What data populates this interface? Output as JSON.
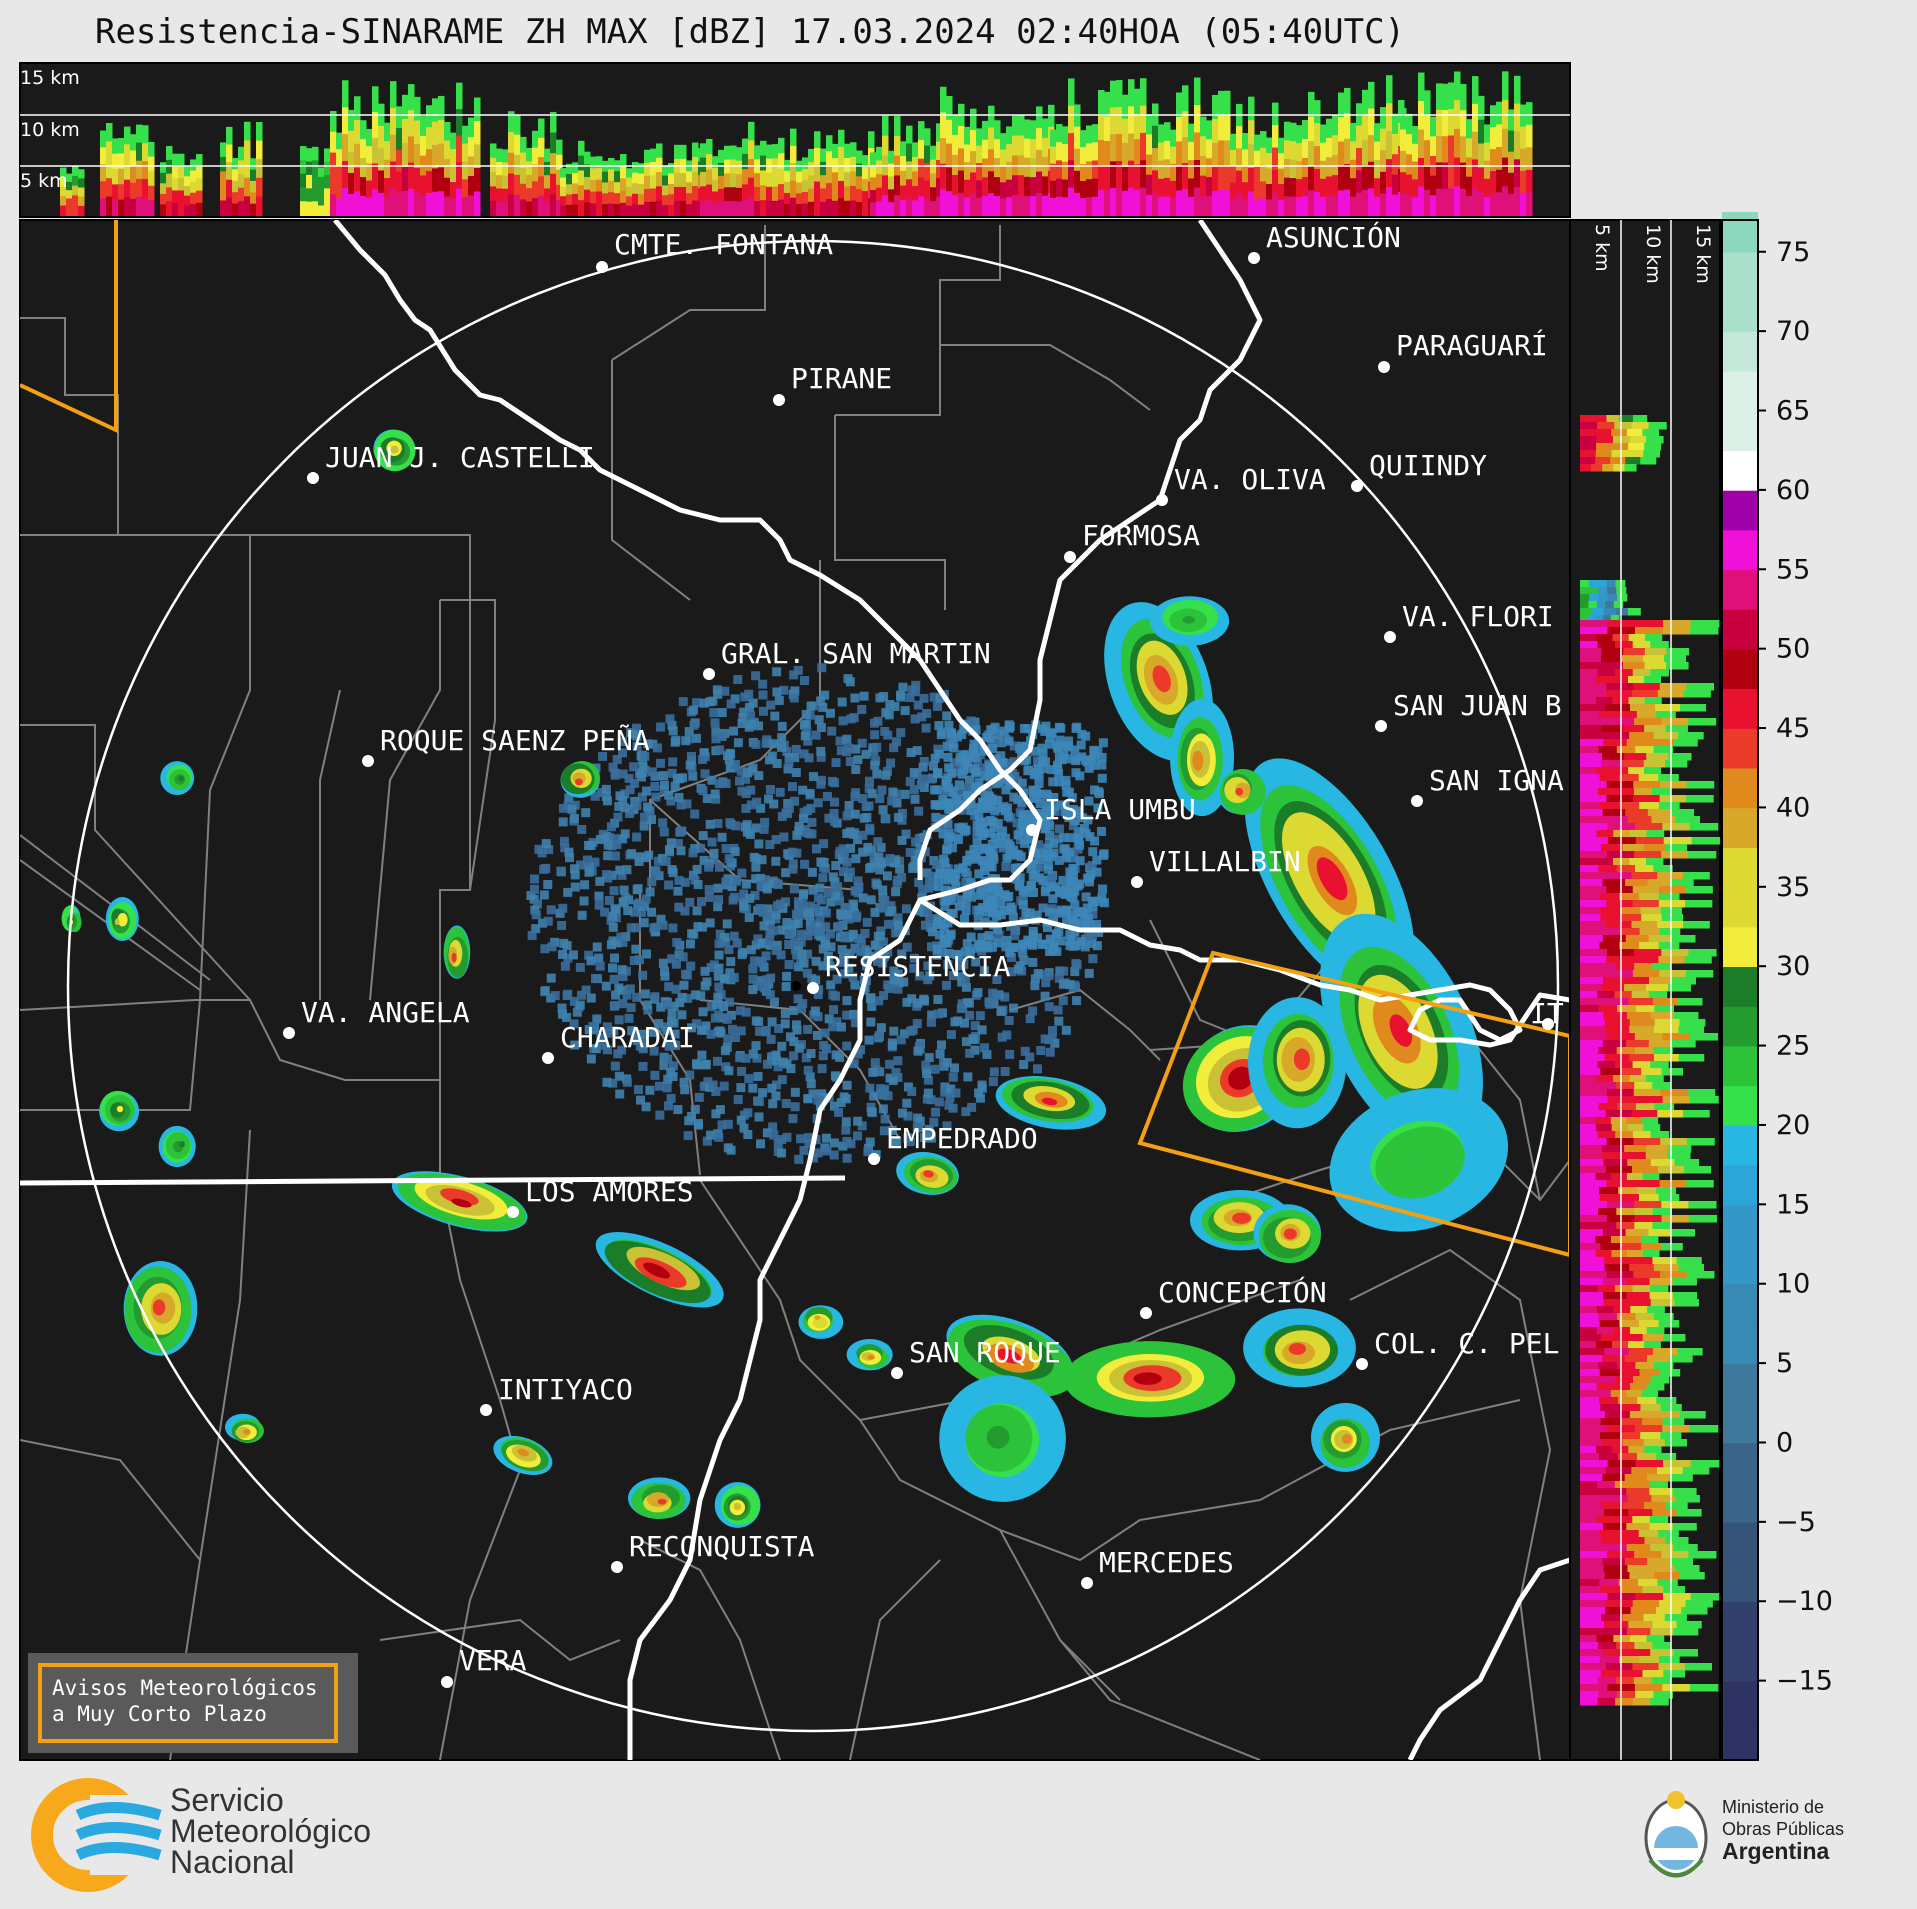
{
  "header": {
    "title": "Resistencia-SINARAME ZH MAX [dBZ] 17.03.2024 02:40HOA (05:40UTC)"
  },
  "cross_section_top": {
    "height_labels": [
      "15 km",
      "10 km",
      "5 km"
    ]
  },
  "cross_section_right": {
    "height_labels": [
      "5 km",
      "10 km",
      "15 km"
    ]
  },
  "map": {
    "radar_site": "RESISTENCIA",
    "cities": [
      {
        "id": "cmte-fontana",
        "label": "CMTE. FONTANA"
      },
      {
        "id": "asuncion",
        "label": "ASUNCIÓN"
      },
      {
        "id": "pirane",
        "label": "PIRANE"
      },
      {
        "id": "paraguari",
        "label": "PARAGUARÍ"
      },
      {
        "id": "juan-castelli",
        "label": "JUAN J. CASTELLI"
      },
      {
        "id": "va-oliva",
        "label": "VA. OLIVA"
      },
      {
        "id": "quiindy",
        "label": "QUIINDY"
      },
      {
        "id": "formosa",
        "label": "FORMOSA"
      },
      {
        "id": "va-florida",
        "label": "VA. FLORI"
      },
      {
        "id": "gral-san-martin",
        "label": "GRAL. SAN MARTIN"
      },
      {
        "id": "san-juan-b",
        "label": "SAN JUAN B"
      },
      {
        "id": "roque-saenz-pena",
        "label": "ROQUE SAENZ PEÑA"
      },
      {
        "id": "san-ignacio",
        "label": "SAN IGNA"
      },
      {
        "id": "isla-umbu",
        "label": "ISLA UMBU"
      },
      {
        "id": "villalbin",
        "label": "VILLALBIN"
      },
      {
        "id": "resistencia",
        "label": "RESISTENCIA"
      },
      {
        "id": "va-angela",
        "label": "VA. ANGELA"
      },
      {
        "id": "charadai",
        "label": "CHARADAI"
      },
      {
        "id": "ita",
        "label": "IT"
      },
      {
        "id": "empedrado",
        "label": "EMPEDRADO"
      },
      {
        "id": "los-amores",
        "label": "LOS AMORES"
      },
      {
        "id": "concepcion",
        "label": "CONCEPCIÓN"
      },
      {
        "id": "col-c-pel",
        "label": "COL. C. PEL"
      },
      {
        "id": "san-roque",
        "label": "SAN ROQUE"
      },
      {
        "id": "intiyaco",
        "label": "INTIYACO"
      },
      {
        "id": "reconquista",
        "label": "RECONQUISTA"
      },
      {
        "id": "mercedes",
        "label": "MERCEDES"
      },
      {
        "id": "vera",
        "label": "VERA"
      }
    ]
  },
  "colorbar": {
    "ticks": [
      "75",
      "70",
      "65",
      "60",
      "55",
      "50",
      "45",
      "40",
      "35",
      "30",
      "25",
      "20",
      "15",
      "10",
      "5",
      "0",
      "−5",
      "−10",
      "−15"
    ],
    "min": -20,
    "max": 77
  },
  "warning_box": {
    "line1": "Avisos Meteorológicos",
    "line2": "a Muy Corto Plazo"
  },
  "footer": {
    "smn_line1": "Servicio",
    "smn_line2": "Meteorológico",
    "smn_line3": "Nacional",
    "mop_line1": "Ministerio de",
    "mop_line2": "Obras Públicas",
    "mop_line3": "Argentina"
  },
  "colors": {
    "map_background": "#1a1a1a",
    "page_background": "#e8e8e8",
    "warning_polygon": "#f5a013",
    "border_lines": "#ffffff",
    "admin_lines": "#808080",
    "smn_orange": "#f7a81b",
    "smn_blue": "#29a9e0"
  }
}
